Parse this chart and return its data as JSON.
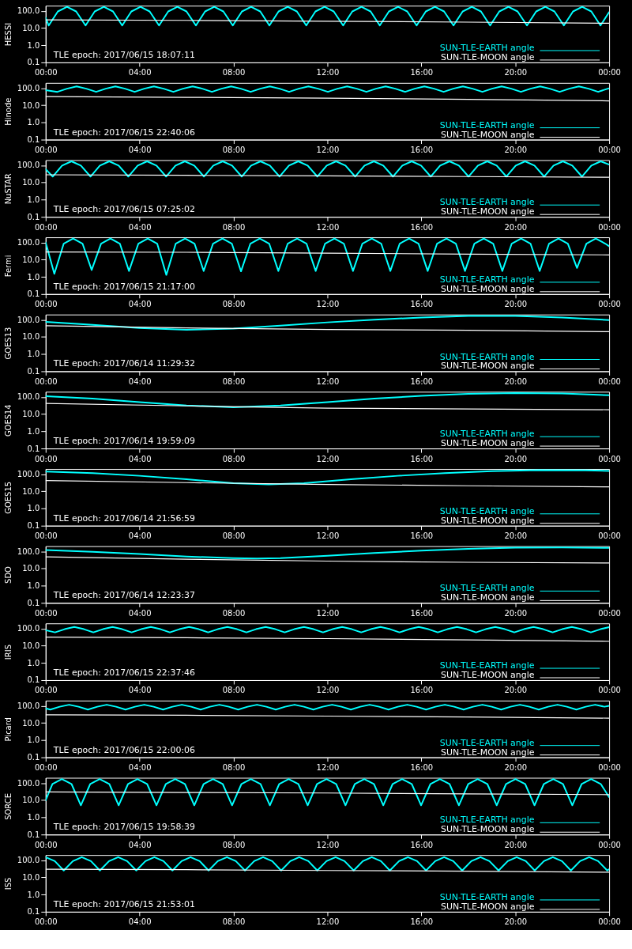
{
  "chart_data": [
    {
      "type": "line",
      "ylabel": "HESSI",
      "log": true,
      "grid": false,
      "legend": "bottom right",
      "xlim": [
        0,
        24
      ],
      "ylim": [
        0.1,
        200
      ],
      "xticks": [
        {
          "value": 0,
          "label": "00:00"
        },
        {
          "value": 4,
          "label": "04:00"
        },
        {
          "value": 8,
          "label": "08:00"
        },
        {
          "value": 12,
          "label": "12:00"
        },
        {
          "value": 16,
          "label": "16:00"
        },
        {
          "value": 20,
          "label": "20:00"
        },
        {
          "value": 24,
          "label": "00:00"
        }
      ],
      "yticks": [
        {
          "value": 0.1,
          "label": "0.1"
        },
        {
          "value": 1,
          "label": "1.0"
        },
        {
          "value": 10,
          "label": "10.0"
        },
        {
          "value": 100,
          "label": "100.0"
        }
      ],
      "annotations": [
        "TLE epoch: 2017/06/15 18:07:11"
      ],
      "series": [
        {
          "name": "SUN-TLE-EARTH angle",
          "color": "#00ffff",
          "x": [
            0,
            0.13,
            0.52,
            0.91,
            1.3,
            1.7,
            2.09,
            2.48,
            2.87,
            3.26,
            3.65,
            4.04,
            4.43,
            4.83,
            5.22,
            5.61,
            6.0,
            6.4,
            6.79,
            7.18,
            7.57,
            7.97,
            8.36,
            8.75,
            9.14,
            9.53,
            9.92,
            10.31,
            10.7,
            11.1,
            11.49,
            11.88,
            12.27,
            12.67,
            13.06,
            13.45,
            13.84,
            14.23,
            14.62,
            15.01,
            15.4,
            15.8,
            16.19,
            16.58,
            16.97,
            17.37,
            17.76,
            18.15,
            18.54,
            18.93,
            19.32,
            19.71,
            20.1,
            20.5,
            20.89,
            21.28,
            21.67,
            22.07,
            22.46,
            22.85,
            23.24,
            23.63,
            24
          ],
          "values": [
            40,
            14,
            92,
            170,
            92,
            14,
            92,
            170,
            92,
            14,
            92,
            170,
            92,
            14,
            92,
            170,
            92,
            14,
            92,
            170,
            92,
            14,
            92,
            170,
            92,
            14,
            92,
            170,
            92,
            14,
            92,
            170,
            92,
            14,
            92,
            170,
            92,
            14,
            92,
            170,
            92,
            14,
            92,
            170,
            92,
            14,
            92,
            170,
            92,
            14,
            92,
            170,
            92,
            14,
            92,
            170,
            92,
            14,
            92,
            170,
            92,
            14,
            85
          ]
        },
        {
          "name": "SUN-TLE-MOON angle",
          "color": "#ffffff",
          "x": [
            0,
            6,
            12,
            18,
            24
          ],
          "values": [
            30,
            28,
            25,
            22,
            19
          ]
        }
      ]
    },
    {
      "type": "line",
      "ylabel": "Hinode",
      "log": true,
      "grid": false,
      "legend": "bottom right",
      "xlim": [
        0,
        24
      ],
      "ylim": [
        0.1,
        200
      ],
      "xticks": [
        {
          "value": 0,
          "label": "00:00"
        },
        {
          "value": 4,
          "label": "04:00"
        },
        {
          "value": 8,
          "label": "08:00"
        },
        {
          "value": 12,
          "label": "12:00"
        },
        {
          "value": 16,
          "label": "16:00"
        },
        {
          "value": 20,
          "label": "20:00"
        },
        {
          "value": 24,
          "label": "00:00"
        }
      ],
      "yticks": [
        {
          "value": 0.1,
          "label": "0.1"
        },
        {
          "value": 1,
          "label": "1.0"
        },
        {
          "value": 10,
          "label": "10.0"
        },
        {
          "value": 100,
          "label": "100.0"
        }
      ],
      "annotations": [
        "TLE epoch: 2017/06/15 22:40:06"
      ],
      "series": [
        {
          "name": "SUN-TLE-EARTH angle",
          "color": "#00ffff",
          "x": [
            0,
            0.5,
            0.91,
            1.32,
            1.73,
            2.15,
            2.56,
            2.97,
            3.38,
            3.79,
            4.2,
            4.61,
            5.02,
            5.44,
            5.85,
            6.26,
            6.67,
            7.08,
            7.49,
            7.9,
            8.31,
            8.73,
            9.14,
            9.55,
            9.96,
            10.37,
            10.78,
            11.19,
            11.6,
            12.02,
            12.43,
            12.84,
            13.25,
            13.66,
            14.07,
            14.48,
            14.89,
            15.31,
            15.72,
            16.13,
            16.54,
            16.95,
            17.36,
            17.77,
            18.18,
            18.6,
            19.01,
            19.42,
            19.83,
            20.24,
            20.65,
            21.06,
            21.47,
            21.89,
            22.3,
            22.71,
            23.12,
            23.53,
            23.94,
            24
          ],
          "values": [
            75,
            60,
            92,
            125,
            92,
            60,
            92,
            125,
            92,
            60,
            92,
            125,
            92,
            60,
            92,
            125,
            92,
            60,
            92,
            125,
            92,
            60,
            92,
            125,
            92,
            60,
            92,
            125,
            92,
            60,
            92,
            125,
            92,
            60,
            92,
            125,
            92,
            60,
            92,
            125,
            92,
            60,
            92,
            125,
            92,
            60,
            92,
            125,
            92,
            60,
            92,
            125,
            92,
            60,
            92,
            125,
            92,
            60,
            92,
            95
          ]
        },
        {
          "name": "SUN-TLE-MOON angle",
          "color": "#ffffff",
          "x": [
            0,
            6,
            12,
            18,
            24
          ],
          "values": [
            32,
            29,
            26,
            22,
            18
          ]
        }
      ]
    },
    {
      "type": "line",
      "ylabel": "NuSTAR",
      "log": true,
      "grid": false,
      "legend": "bottom right",
      "xlim": [
        0,
        24
      ],
      "ylim": [
        0.1,
        200
      ],
      "xticks": [
        {
          "value": 0,
          "label": "00:00"
        },
        {
          "value": 4,
          "label": "04:00"
        },
        {
          "value": 8,
          "label": "08:00"
        },
        {
          "value": 12,
          "label": "12:00"
        },
        {
          "value": 16,
          "label": "16:00"
        },
        {
          "value": 20,
          "label": "20:00"
        },
        {
          "value": 24,
          "label": "00:00"
        }
      ],
      "yticks": [
        {
          "value": 0.1,
          "label": "0.1"
        },
        {
          "value": 1,
          "label": "1.0"
        },
        {
          "value": 10,
          "label": "10.0"
        },
        {
          "value": 100,
          "label": "100.0"
        }
      ],
      "annotations": [
        "TLE epoch: 2017/06/15 07:25:02"
      ],
      "series": [
        {
          "name": "SUN-TLE-EARTH angle",
          "color": "#00ffff",
          "x": [
            0,
            0.3,
            0.7,
            1.1,
            1.5,
            1.91,
            2.31,
            2.71,
            3.11,
            3.52,
            3.92,
            4.32,
            4.72,
            5.13,
            5.53,
            5.93,
            6.33,
            6.74,
            7.14,
            7.54,
            7.94,
            8.35,
            8.75,
            9.15,
            9.55,
            9.96,
            10.36,
            10.76,
            11.16,
            11.57,
            11.97,
            12.37,
            12.77,
            13.18,
            13.58,
            13.98,
            14.38,
            14.79,
            15.19,
            15.59,
            15.99,
            16.4,
            16.8,
            17.2,
            17.6,
            18.01,
            18.41,
            18.81,
            19.21,
            19.62,
            20.02,
            20.42,
            20.82,
            21.23,
            21.63,
            22.03,
            22.43,
            22.84,
            23.24,
            23.64,
            24
          ],
          "values": [
            60,
            22,
            96,
            170,
            96,
            22,
            96,
            170,
            96,
            22,
            96,
            170,
            96,
            22,
            96,
            170,
            96,
            22,
            96,
            170,
            96,
            22,
            96,
            170,
            96,
            22,
            96,
            170,
            96,
            22,
            96,
            170,
            96,
            22,
            96,
            170,
            96,
            22,
            96,
            170,
            96,
            22,
            96,
            170,
            96,
            22,
            96,
            170,
            96,
            22,
            96,
            170,
            96,
            22,
            96,
            170,
            96,
            22,
            96,
            170,
            110
          ]
        },
        {
          "name": "SUN-TLE-MOON angle",
          "color": "#ffffff",
          "x": [
            0,
            6,
            12,
            18,
            24
          ],
          "values": [
            28,
            26,
            24,
            22,
            20
          ]
        }
      ]
    },
    {
      "type": "line",
      "ylabel": "Fermi",
      "log": true,
      "grid": false,
      "legend": "bottom right",
      "xlim": [
        0,
        24
      ],
      "ylim": [
        0.1,
        200
      ],
      "xticks": [
        {
          "value": 0,
          "label": "00:00"
        },
        {
          "value": 4,
          "label": "04:00"
        },
        {
          "value": 8,
          "label": "08:00"
        },
        {
          "value": 12,
          "label": "12:00"
        },
        {
          "value": 16,
          "label": "16:00"
        },
        {
          "value": 20,
          "label": "20:00"
        },
        {
          "value": 24,
          "label": "00:00"
        }
      ],
      "yticks": [
        {
          "value": 0.1,
          "label": "0.1"
        },
        {
          "value": 1,
          "label": "1.0"
        },
        {
          "value": 10,
          "label": "10.0"
        },
        {
          "value": 100,
          "label": "100.0"
        }
      ],
      "annotations": [
        "TLE epoch: 2017/06/15 21:17:00"
      ],
      "series": [
        {
          "name": "SUN-TLE-EARTH angle",
          "color": "#00ffff",
          "x": [
            0,
            0.37,
            0.77,
            1.17,
            1.57,
            1.96,
            2.36,
            2.76,
            3.16,
            3.55,
            3.95,
            4.35,
            4.75,
            5.14,
            5.54,
            5.94,
            6.34,
            6.73,
            7.13,
            7.53,
            7.93,
            8.32,
            8.72,
            9.12,
            9.52,
            9.91,
            10.31,
            10.71,
            11.11,
            11.5,
            11.9,
            12.3,
            12.7,
            13.09,
            13.49,
            13.89,
            14.29,
            14.68,
            15.08,
            15.48,
            15.88,
            16.27,
            16.67,
            17.07,
            17.47,
            17.86,
            18.26,
            18.66,
            19.06,
            19.45,
            19.85,
            20.25,
            20.65,
            21.04,
            21.44,
            21.84,
            22.24,
            22.63,
            23.03,
            23.43,
            23.83,
            24
          ],
          "values": [
            100,
            1.5,
            86,
            170,
            86,
            2.5,
            86,
            170,
            86,
            2.2,
            86,
            170,
            86,
            1.3,
            86,
            170,
            86,
            2.2,
            86,
            170,
            86,
            2.1,
            86,
            170,
            86,
            2.2,
            86,
            170,
            86,
            2.2,
            86,
            170,
            86,
            2.2,
            86,
            170,
            86,
            2.2,
            86,
            170,
            86,
            2.2,
            86,
            170,
            86,
            2.2,
            86,
            170,
            86,
            2.2,
            86,
            170,
            86,
            2.2,
            86,
            170,
            86,
            3.3,
            86,
            170,
            86,
            60
          ]
        },
        {
          "name": "SUN-TLE-MOON angle",
          "color": "#ffffff",
          "x": [
            0,
            6,
            12,
            18,
            24
          ],
          "values": [
            28,
            27,
            24,
            21,
            19
          ]
        }
      ]
    },
    {
      "type": "line",
      "ylabel": "GOES13",
      "log": true,
      "grid": false,
      "legend": "bottom right",
      "xlim": [
        0,
        24
      ],
      "ylim": [
        0.1,
        200
      ],
      "xticks": [
        {
          "value": 0,
          "label": "00:00"
        },
        {
          "value": 4,
          "label": "04:00"
        },
        {
          "value": 8,
          "label": "08:00"
        },
        {
          "value": 12,
          "label": "12:00"
        },
        {
          "value": 16,
          "label": "16:00"
        },
        {
          "value": 20,
          "label": "20:00"
        },
        {
          "value": 24,
          "label": "00:00"
        }
      ],
      "yticks": [
        {
          "value": 0.1,
          "label": "0.1"
        },
        {
          "value": 1,
          "label": "1.0"
        },
        {
          "value": 10,
          "label": "10.0"
        },
        {
          "value": 100,
          "label": "100.0"
        }
      ],
      "annotations": [
        "TLE epoch: 2017/06/14 11:29:32"
      ],
      "series": [
        {
          "name": "SUN-TLE-EARTH angle",
          "color": "#00ffff",
          "x": [
            0,
            2,
            4,
            6,
            8,
            10,
            12,
            14,
            16,
            18,
            20,
            22,
            24
          ],
          "values": [
            75,
            50,
            33,
            26,
            30,
            45,
            70,
            100,
            135,
            165,
            165,
            135,
            95
          ]
        },
        {
          "name": "SUN-TLE-MOON angle",
          "color": "#ffffff",
          "x": [
            0,
            6,
            12,
            18,
            24
          ],
          "values": [
            45,
            33,
            27,
            24,
            20
          ]
        }
      ]
    },
    {
      "type": "line",
      "ylabel": "GOES14",
      "log": true,
      "grid": false,
      "legend": "bottom right",
      "xlim": [
        0,
        24
      ],
      "ylim": [
        0.1,
        200
      ],
      "xticks": [
        {
          "value": 0,
          "label": "00:00"
        },
        {
          "value": 4,
          "label": "04:00"
        },
        {
          "value": 8,
          "label": "08:00"
        },
        {
          "value": 12,
          "label": "12:00"
        },
        {
          "value": 16,
          "label": "16:00"
        },
        {
          "value": 20,
          "label": "20:00"
        },
        {
          "value": 24,
          "label": "00:00"
        }
      ],
      "yticks": [
        {
          "value": 0.1,
          "label": "0.1"
        },
        {
          "value": 1,
          "label": "1.0"
        },
        {
          "value": 10,
          "label": "10.0"
        },
        {
          "value": 100,
          "label": "100.0"
        }
      ],
      "annotations": [
        "TLE epoch: 2017/06/14 19:59:09"
      ],
      "series": [
        {
          "name": "SUN-TLE-EARTH angle",
          "color": "#00ffff",
          "x": [
            0,
            2,
            4,
            6,
            8,
            10,
            12,
            14,
            16,
            18,
            20,
            22,
            24
          ],
          "values": [
            110,
            80,
            50,
            32,
            25,
            32,
            50,
            80,
            115,
            150,
            170,
            160,
            125
          ]
        },
        {
          "name": "SUN-TLE-MOON angle",
          "color": "#ffffff",
          "x": [
            0,
            6,
            12,
            18,
            24
          ],
          "values": [
            42,
            30,
            22,
            20,
            18
          ]
        }
      ]
    },
    {
      "type": "line",
      "ylabel": "GOES15",
      "log": true,
      "grid": false,
      "legend": "bottom right",
      "xlim": [
        0,
        24
      ],
      "ylim": [
        0.1,
        200
      ],
      "xticks": [
        {
          "value": 0,
          "label": "00:00"
        },
        {
          "value": 4,
          "label": "04:00"
        },
        {
          "value": 8,
          "label": "08:00"
        },
        {
          "value": 12,
          "label": "12:00"
        },
        {
          "value": 16,
          "label": "16:00"
        },
        {
          "value": 20,
          "label": "20:00"
        },
        {
          "value": 24,
          "label": "00:00"
        }
      ],
      "yticks": [
        {
          "value": 0.1,
          "label": "0.1"
        },
        {
          "value": 1,
          "label": "1.0"
        },
        {
          "value": 10,
          "label": "10.0"
        },
        {
          "value": 100,
          "label": "100.0"
        }
      ],
      "annotations": [
        "TLE epoch: 2017/06/14 21:56:59"
      ],
      "series": [
        {
          "name": "SUN-TLE-EARTH angle",
          "color": "#00ffff",
          "x": [
            0,
            2,
            4,
            6,
            8,
            9.5,
            11,
            13,
            15,
            17,
            19,
            21,
            23,
            24
          ],
          "values": [
            140,
            115,
            80,
            50,
            30,
            25,
            30,
            50,
            80,
            115,
            150,
            170,
            165,
            155
          ]
        },
        {
          "name": "SUN-TLE-MOON angle",
          "color": "#ffffff",
          "x": [
            0,
            6,
            12,
            18,
            24
          ],
          "values": [
            42,
            32,
            25,
            21,
            18
          ]
        }
      ]
    },
    {
      "type": "line",
      "ylabel": "SDO",
      "log": true,
      "grid": false,
      "legend": "bottom right",
      "xlim": [
        0,
        24
      ],
      "ylim": [
        0.1,
        200
      ],
      "xticks": [
        {
          "value": 0,
          "label": "00:00"
        },
        {
          "value": 4,
          "label": "04:00"
        },
        {
          "value": 8,
          "label": "08:00"
        },
        {
          "value": 12,
          "label": "12:00"
        },
        {
          "value": 16,
          "label": "16:00"
        },
        {
          "value": 20,
          "label": "20:00"
        },
        {
          "value": 24,
          "label": "00:00"
        }
      ],
      "yticks": [
        {
          "value": 0.1,
          "label": "0.1"
        },
        {
          "value": 1,
          "label": "1.0"
        },
        {
          "value": 10,
          "label": "10.0"
        },
        {
          "value": 100,
          "label": "100.0"
        }
      ],
      "annotations": [
        "TLE epoch: 2017/06/14 12:23:37"
      ],
      "series": [
        {
          "name": "SUN-TLE-EARTH angle",
          "color": "#00ffff",
          "x": [
            0,
            2,
            4,
            6,
            8,
            9,
            10,
            12,
            14,
            16,
            18,
            20,
            22,
            24
          ],
          "values": [
            120,
            95,
            70,
            50,
            40,
            38,
            40,
            55,
            80,
            110,
            140,
            165,
            170,
            160
          ]
        },
        {
          "name": "SUN-TLE-MOON angle",
          "color": "#ffffff",
          "x": [
            0,
            6,
            12,
            18,
            24
          ],
          "values": [
            48,
            35,
            27,
            23,
            21
          ]
        }
      ]
    },
    {
      "type": "line",
      "ylabel": "IRIS",
      "log": true,
      "grid": false,
      "legend": "bottom right",
      "xlim": [
        0,
        24
      ],
      "ylim": [
        0.1,
        200
      ],
      "xticks": [
        {
          "value": 0,
          "label": "00:00"
        },
        {
          "value": 4,
          "label": "04:00"
        },
        {
          "value": 8,
          "label": "08:00"
        },
        {
          "value": 12,
          "label": "12:00"
        },
        {
          "value": 16,
          "label": "16:00"
        },
        {
          "value": 20,
          "label": "20:00"
        },
        {
          "value": 24,
          "label": "00:00"
        }
      ],
      "yticks": [
        {
          "value": 0.1,
          "label": "0.1"
        },
        {
          "value": 1,
          "label": "1.0"
        },
        {
          "value": 10,
          "label": "10.0"
        },
        {
          "value": 100,
          "label": "100.0"
        }
      ],
      "annotations": [
        "TLE epoch: 2017/06/15 22:37:46"
      ],
      "series": [
        {
          "name": "SUN-TLE-EARTH angle",
          "color": "#00ffff",
          "x": [
            0,
            0.4,
            0.81,
            1.22,
            1.63,
            2.03,
            2.44,
            2.85,
            3.26,
            3.66,
            4.07,
            4.48,
            4.89,
            5.29,
            5.7,
            6.11,
            6.52,
            6.92,
            7.33,
            7.74,
            8.15,
            8.55,
            8.96,
            9.37,
            9.78,
            10.18,
            10.59,
            11.0,
            11.41,
            11.81,
            12.22,
            12.63,
            13.04,
            13.44,
            13.85,
            14.26,
            14.67,
            15.07,
            15.48,
            15.89,
            16.3,
            16.7,
            17.11,
            17.52,
            17.93,
            18.33,
            18.74,
            19.15,
            19.56,
            19.96,
            20.37,
            20.78,
            21.19,
            21.59,
            22.0,
            22.41,
            22.82,
            23.22,
            23.63,
            24
          ],
          "values": [
            80,
            60,
            92,
            125,
            92,
            60,
            92,
            125,
            92,
            60,
            92,
            125,
            92,
            60,
            92,
            125,
            92,
            60,
            92,
            125,
            92,
            60,
            92,
            125,
            92,
            60,
            92,
            125,
            92,
            60,
            92,
            125,
            92,
            60,
            92,
            125,
            92,
            60,
            92,
            125,
            92,
            60,
            92,
            125,
            92,
            60,
            92,
            125,
            92,
            60,
            92,
            125,
            92,
            60,
            92,
            125,
            92,
            60,
            92,
            122
          ]
        },
        {
          "name": "SUN-TLE-MOON angle",
          "color": "#ffffff",
          "x": [
            0,
            6,
            12,
            18,
            24
          ],
          "values": [
            32,
            29,
            26,
            22,
            18
          ]
        }
      ]
    },
    {
      "type": "line",
      "ylabel": "Picard",
      "log": true,
      "grid": false,
      "legend": "bottom right",
      "xlim": [
        0,
        24
      ],
      "ylim": [
        0.1,
        200
      ],
      "xticks": [
        {
          "value": 0,
          "label": "00:00"
        },
        {
          "value": 4,
          "label": "04:00"
        },
        {
          "value": 8,
          "label": "08:00"
        },
        {
          "value": 12,
          "label": "12:00"
        },
        {
          "value": 16,
          "label": "16:00"
        },
        {
          "value": 20,
          "label": "20:00"
        },
        {
          "value": 24,
          "label": "00:00"
        }
      ],
      "yticks": [
        {
          "value": 0.1,
          "label": "0.1"
        },
        {
          "value": 1,
          "label": "1.0"
        },
        {
          "value": 10,
          "label": "10.0"
        },
        {
          "value": 100,
          "label": "100.0"
        }
      ],
      "annotations": [
        "TLE epoch: 2017/06/15 22:00:06"
      ],
      "series": [
        {
          "name": "SUN-TLE-EARTH angle",
          "color": "#00ffff",
          "x": [
            0,
            0.2,
            0.6,
            1.0,
            1.4,
            1.8,
            2.2,
            2.6,
            3.0,
            3.4,
            3.8,
            4.2,
            4.6,
            5.0,
            5.4,
            5.8,
            6.2,
            6.6,
            7.0,
            7.4,
            7.8,
            8.2,
            8.6,
            9.0,
            9.4,
            9.8,
            10.2,
            10.6,
            11.0,
            11.4,
            11.8,
            12.2,
            12.6,
            13.0,
            13.4,
            13.8,
            14.2,
            14.6,
            15.0,
            15.4,
            15.8,
            16.2,
            16.6,
            17.0,
            17.4,
            17.8,
            18.2,
            18.6,
            19.0,
            19.4,
            19.8,
            20.2,
            20.6,
            21.0,
            21.4,
            21.8,
            22.2,
            22.6,
            23.0,
            23.4,
            23.8,
            24
          ],
          "values": [
            70,
            60,
            88,
            115,
            88,
            60,
            88,
            115,
            88,
            60,
            88,
            115,
            88,
            60,
            88,
            115,
            88,
            60,
            88,
            115,
            88,
            60,
            88,
            115,
            88,
            60,
            88,
            115,
            88,
            60,
            88,
            115,
            88,
            60,
            88,
            115,
            88,
            60,
            88,
            115,
            88,
            60,
            88,
            115,
            88,
            60,
            88,
            115,
            88,
            60,
            88,
            115,
            88,
            60,
            88,
            115,
            88,
            60,
            88,
            115,
            88,
            100
          ]
        },
        {
          "name": "SUN-TLE-MOON angle",
          "color": "#ffffff",
          "x": [
            0,
            6,
            12,
            18,
            24
          ],
          "values": [
            30,
            28,
            25,
            22,
            19
          ]
        }
      ]
    },
    {
      "type": "line",
      "ylabel": "SORCE",
      "log": true,
      "grid": false,
      "legend": "bottom right",
      "xlim": [
        0,
        24
      ],
      "ylim": [
        0.1,
        200
      ],
      "xticks": [
        {
          "value": 0,
          "label": "00:00"
        },
        {
          "value": 4,
          "label": "04:00"
        },
        {
          "value": 8,
          "label": "08:00"
        },
        {
          "value": 12,
          "label": "12:00"
        },
        {
          "value": 16,
          "label": "16:00"
        },
        {
          "value": 20,
          "label": "20:00"
        },
        {
          "value": 24,
          "label": "00:00"
        }
      ],
      "yticks": [
        {
          "value": 0.1,
          "label": "0.1"
        },
        {
          "value": 1,
          "label": "1.0"
        },
        {
          "value": 10,
          "label": "10.0"
        },
        {
          "value": 100,
          "label": "100.0"
        }
      ],
      "annotations": [
        "TLE epoch: 2017/06/15 19:58:39"
      ],
      "series": [
        {
          "name": "SUN-TLE-EARTH angle",
          "color": "#00ffff",
          "x": [
            0,
            0.29,
            0.69,
            1.1,
            1.5,
            1.9,
            2.3,
            2.71,
            3.11,
            3.51,
            3.91,
            4.32,
            4.72,
            5.12,
            5.52,
            5.93,
            6.33,
            6.73,
            7.13,
            7.54,
            7.94,
            8.34,
            8.74,
            9.15,
            9.55,
            9.95,
            10.35,
            10.76,
            11.16,
            11.56,
            11.96,
            12.37,
            12.77,
            13.17,
            13.57,
            13.98,
            14.38,
            14.78,
            15.18,
            15.59,
            15.99,
            16.39,
            16.79,
            17.2,
            17.6,
            18.0,
            18.4,
            18.81,
            19.21,
            19.61,
            20.01,
            20.42,
            20.82,
            21.22,
            21.62,
            22.03,
            22.43,
            22.83,
            23.23,
            23.64,
            24
          ],
          "values": [
            10,
            88,
            170,
            88,
            5,
            88,
            170,
            88,
            5,
            88,
            170,
            88,
            5,
            88,
            170,
            88,
            5,
            88,
            170,
            88,
            5,
            88,
            170,
            88,
            5,
            88,
            170,
            88,
            5,
            88,
            170,
            88,
            5,
            88,
            170,
            88,
            5,
            88,
            170,
            88,
            5,
            88,
            170,
            88,
            5,
            88,
            170,
            88,
            5,
            88,
            170,
            88,
            5,
            88,
            170,
            88,
            5,
            88,
            170,
            88,
            15
          ]
        },
        {
          "name": "SUN-TLE-MOON angle",
          "color": "#ffffff",
          "x": [
            0,
            6,
            12,
            18,
            24
          ],
          "values": [
            30,
            28,
            26,
            23,
            21
          ]
        }
      ]
    },
    {
      "type": "line",
      "ylabel": "ISS",
      "log": true,
      "grid": false,
      "legend": "bottom right",
      "xlim": [
        0,
        24
      ],
      "ylim": [
        0.1,
        200
      ],
      "xticks": [
        {
          "value": 0,
          "label": "00:00"
        },
        {
          "value": 4,
          "label": "04:00"
        },
        {
          "value": 8,
          "label": "08:00"
        },
        {
          "value": 12,
          "label": "12:00"
        },
        {
          "value": 16,
          "label": "16:00"
        },
        {
          "value": 20,
          "label": "20:00"
        },
        {
          "value": 24,
          "label": "00:00"
        }
      ],
      "yticks": [
        {
          "value": 0.1,
          "label": "0.1"
        },
        {
          "value": 1,
          "label": "1.0"
        },
        {
          "value": 10,
          "label": "10.0"
        },
        {
          "value": 100,
          "label": "100.0"
        }
      ],
      "annotations": [
        "TLE epoch: 2017/06/15 21:53:01"
      ],
      "series": [
        {
          "name": "SUN-TLE-EARTH angle",
          "color": "#00ffff",
          "x": [
            0,
            0.39,
            0.77,
            1.16,
            1.54,
            1.93,
            2.31,
            2.7,
            3.09,
            3.47,
            3.86,
            4.25,
            4.63,
            5.02,
            5.4,
            5.79,
            6.17,
            6.56,
            6.94,
            7.33,
            7.72,
            8.1,
            8.49,
            8.88,
            9.26,
            9.65,
            10.03,
            10.42,
            10.8,
            11.19,
            11.57,
            11.96,
            12.35,
            12.73,
            13.12,
            13.51,
            13.89,
            14.28,
            14.66,
            15.05,
            15.43,
            15.82,
            16.2,
            16.59,
            16.97,
            17.36,
            17.74,
            18.13,
            18.52,
            18.9,
            19.29,
            19.68,
            20.06,
            20.45,
            20.83,
            21.22,
            21.6,
            21.99,
            22.37,
            22.76,
            23.15,
            23.53,
            23.92,
            24
          ],
          "values": [
            150,
            88,
            25,
            88,
            150,
            88,
            25,
            88,
            150,
            88,
            25,
            88,
            150,
            88,
            25,
            88,
            150,
            88,
            25,
            88,
            150,
            88,
            25,
            88,
            150,
            88,
            25,
            88,
            150,
            88,
            25,
            88,
            150,
            88,
            25,
            88,
            150,
            88,
            25,
            88,
            150,
            88,
            25,
            88,
            150,
            88,
            25,
            88,
            150,
            88,
            25,
            88,
            150,
            88,
            25,
            88,
            150,
            88,
            25,
            88,
            150,
            88,
            25,
            30
          ]
        },
        {
          "name": "SUN-TLE-MOON angle",
          "color": "#ffffff",
          "x": [
            0,
            6,
            12,
            18,
            24
          ],
          "values": [
            30,
            28,
            25,
            23,
            20
          ]
        }
      ]
    }
  ]
}
